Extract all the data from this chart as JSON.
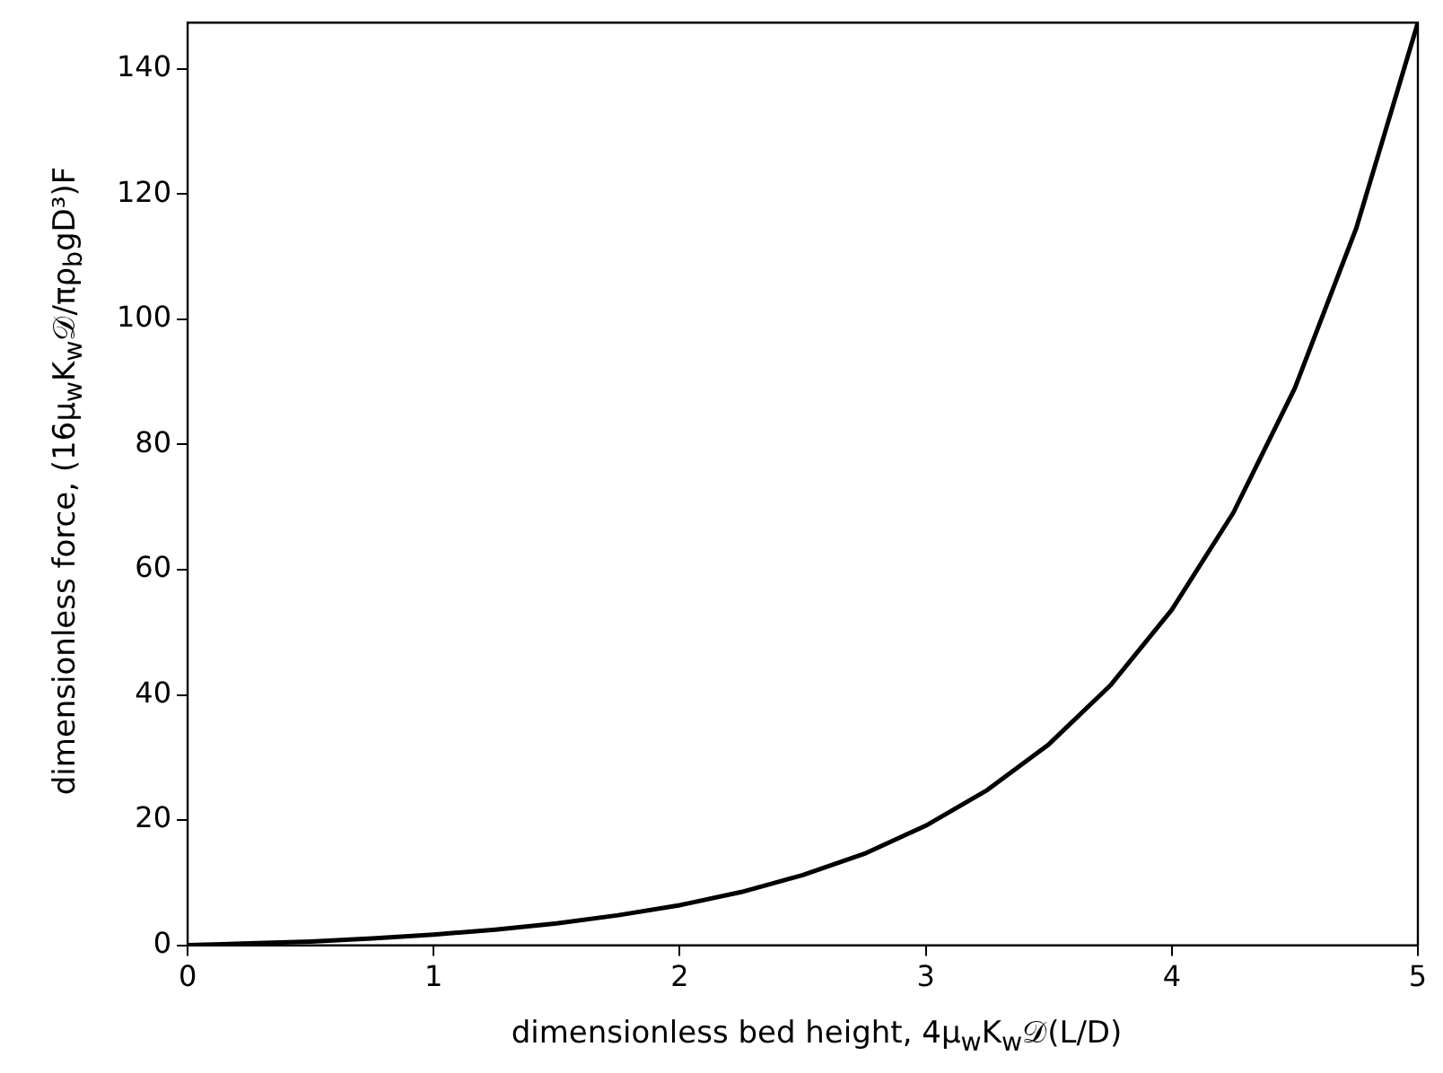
{
  "chart_data": {
    "type": "line",
    "xlabel": "dimensionless bed height, 4μ$_{w}$K$_{w}$𝒟(L/D)",
    "ylabel": "dimensionless force, (16μ$_{w}$K$_{w}$𝒟/πρ$_{b}$gD³)F",
    "x": [
      0,
      0.25,
      0.5,
      0.75,
      1,
      1.25,
      1.5,
      1.75,
      2,
      2.25,
      2.5,
      2.75,
      3,
      3.25,
      3.5,
      3.75,
      4,
      4.25,
      4.5,
      4.75,
      5
    ],
    "series": [
      {
        "color": "#000000",
        "values": [
          0,
          0.3,
          0.6,
          1.1,
          1.7,
          2.5,
          3.5,
          4.8,
          6.4,
          8.5,
          11.2,
          14.6,
          19.1,
          24.8,
          32.1,
          41.5,
          53.6,
          69.1,
          89.0,
          114.6,
          147.4
        ]
      }
    ],
    "xlim": [
      0,
      5
    ],
    "xticks": [
      0,
      1,
      2,
      3,
      4,
      5
    ],
    "ylim": [
      0,
      147.4
    ],
    "yticks": [
      0,
      20,
      40,
      60,
      80,
      100,
      120,
      140
    ],
    "grid": false,
    "legend": false,
    "marker": "none",
    "line_style": "solid"
  }
}
